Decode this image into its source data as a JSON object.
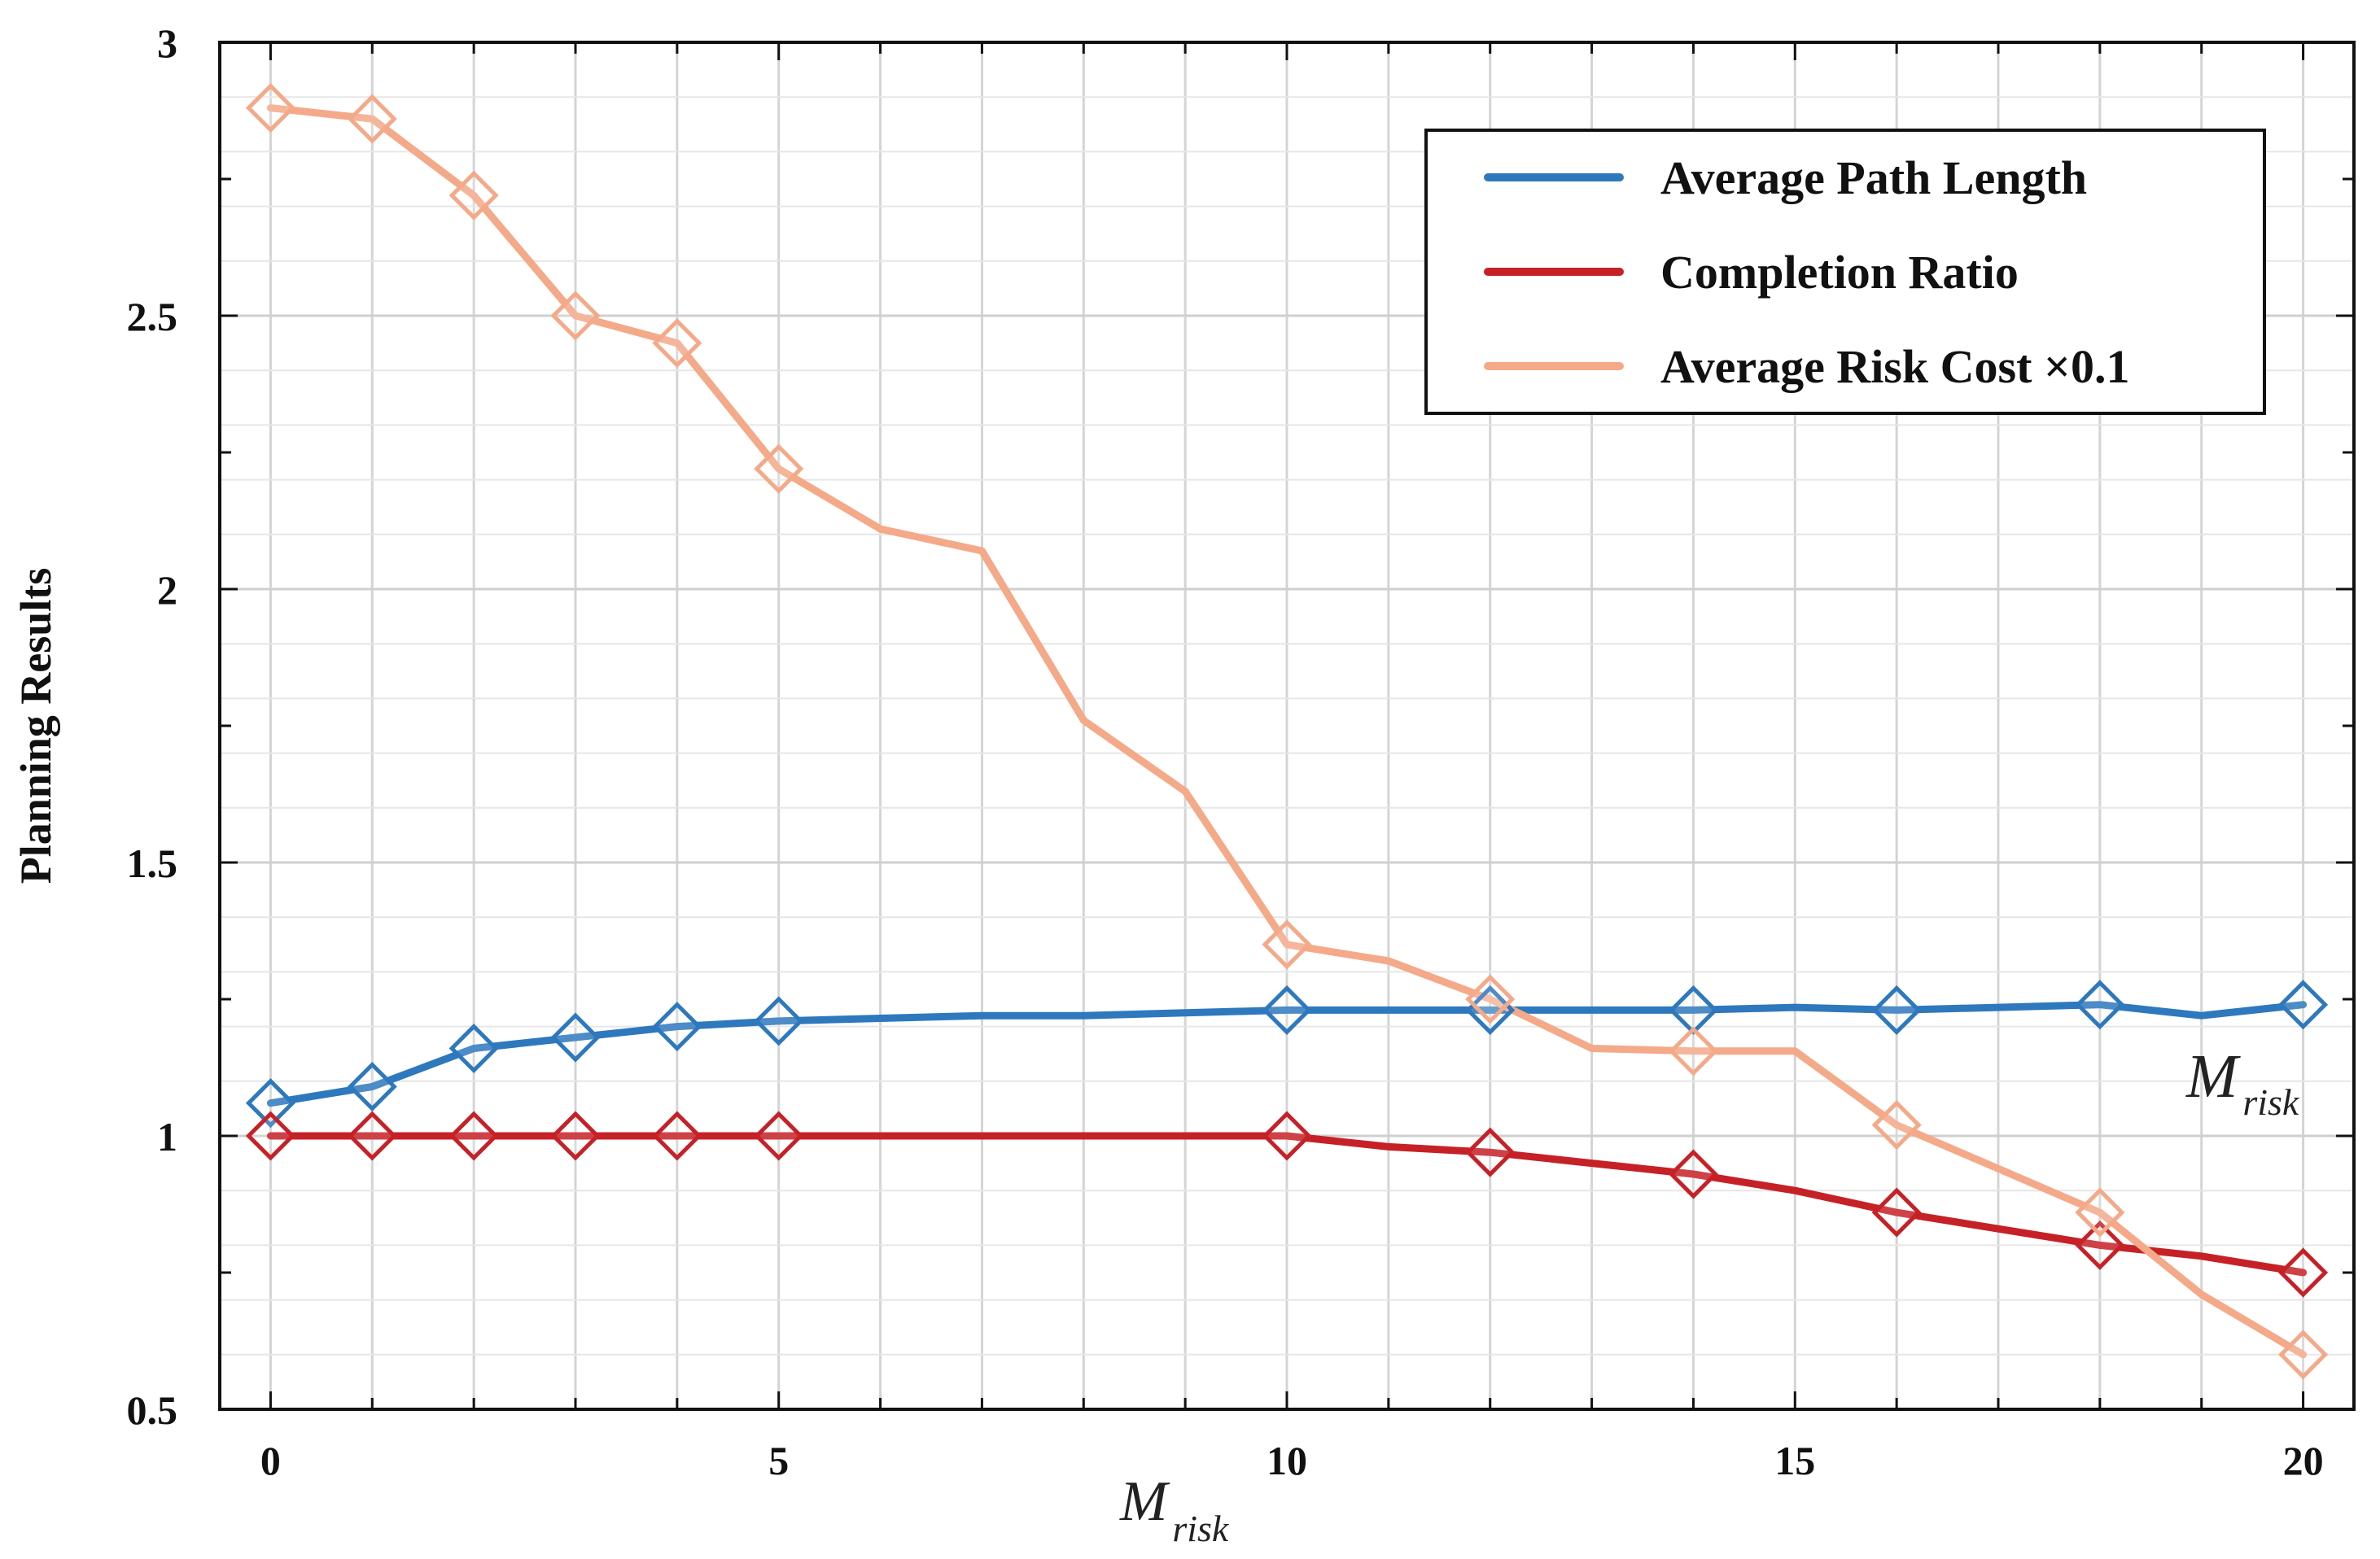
{
  "chart_data": {
    "type": "line",
    "title": "",
    "xlabel": "M",
    "xlabel_sub": "risk",
    "ylabel": "Planning Results",
    "xlim": [
      -0.5,
      20.5
    ],
    "ylim": [
      0.5,
      3
    ],
    "xticks": [
      0,
      5,
      10,
      15,
      20
    ],
    "xtick_labels": [
      "0",
      "5",
      "10",
      "15",
      "20"
    ],
    "yticks": [
      0.5,
      1,
      1.5,
      2,
      2.5,
      3
    ],
    "ytick_labels": [
      "0.5",
      "1",
      "1.5",
      "2",
      "2.5",
      "3"
    ],
    "grid": true,
    "legend_position": "top-right",
    "annotation": {
      "text": "M",
      "sub": "risk"
    },
    "series": [
      {
        "name": "Average Path Length",
        "color": "#2e78bd",
        "x": [
          0,
          1,
          2,
          3,
          4,
          5,
          6,
          7,
          8,
          9,
          10,
          11,
          12,
          13,
          14,
          15,
          16,
          17,
          18,
          19,
          20
        ],
        "y": [
          1.06,
          1.09,
          1.16,
          1.18,
          1.2,
          1.21,
          1.215,
          1.22,
          1.22,
          1.225,
          1.23,
          1.23,
          1.23,
          1.23,
          1.23,
          1.235,
          1.23,
          1.235,
          1.24,
          1.22,
          1.24
        ],
        "markers": [
          0,
          1,
          2,
          3,
          4,
          5,
          10,
          12,
          14,
          16,
          18,
          20
        ]
      },
      {
        "name": "Completion Ratio",
        "color": "#c62127",
        "x": [
          0,
          1,
          2,
          3,
          4,
          5,
          6,
          7,
          8,
          9,
          10,
          11,
          12,
          13,
          14,
          15,
          16,
          17,
          18,
          19,
          20
        ],
        "y": [
          1,
          1,
          1,
          1,
          1,
          1,
          1,
          1,
          1,
          1,
          1,
          0.98,
          0.97,
          0.95,
          0.93,
          0.9,
          0.86,
          0.83,
          0.8,
          0.78,
          0.75
        ],
        "markers": [
          0,
          1,
          2,
          3,
          4,
          5,
          10,
          12,
          14,
          16,
          18,
          20
        ]
      },
      {
        "name": "Average Risk Cost ×0.1",
        "color": "#f4a989",
        "x": [
          0,
          1,
          2,
          3,
          4,
          5,
          6,
          7,
          8,
          9,
          10,
          11,
          12,
          13,
          14,
          15,
          16,
          17,
          18,
          19,
          20
        ],
        "y": [
          2.88,
          2.86,
          2.72,
          2.5,
          2.45,
          2.22,
          2.11,
          2.07,
          1.76,
          1.63,
          1.35,
          1.32,
          1.25,
          1.16,
          1.155,
          1.155,
          1.02,
          0.94,
          0.86,
          0.71,
          0.6
        ],
        "markers": [
          0,
          1,
          2,
          3,
          4,
          5,
          10,
          12,
          14,
          16,
          18,
          20
        ]
      }
    ]
  }
}
